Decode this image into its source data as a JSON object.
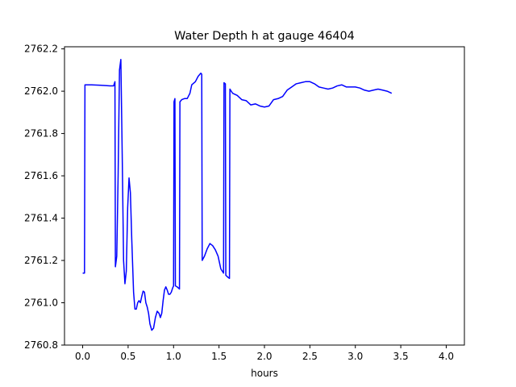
{
  "chart_data": {
    "type": "line",
    "title": "Water Depth h at gauge 46404",
    "xlabel": "hours",
    "ylabel": "",
    "xlim": [
      -0.2,
      4.2
    ],
    "ylim": [
      2760.8,
      2762.21
    ],
    "xticks": [
      {
        "value": 0.0,
        "label": "0.0"
      },
      {
        "value": 0.5,
        "label": "0.5"
      },
      {
        "value": 1.0,
        "label": "1.0"
      },
      {
        "value": 1.5,
        "label": "1.5"
      },
      {
        "value": 2.0,
        "label": "2.0"
      },
      {
        "value": 2.5,
        "label": "2.5"
      },
      {
        "value": 3.0,
        "label": "3.0"
      },
      {
        "value": 3.5,
        "label": "3.5"
      },
      {
        "value": 4.0,
        "label": "4.0"
      }
    ],
    "yticks": [
      {
        "value": 2760.8,
        "label": "2760.8"
      },
      {
        "value": 2761.0,
        "label": "2761.0"
      },
      {
        "value": 2761.2,
        "label": "2761.2"
      },
      {
        "value": 2761.4,
        "label": "2761.4"
      },
      {
        "value": 2761.6,
        "label": "2761.6"
      },
      {
        "value": 2761.8,
        "label": "2761.8"
      },
      {
        "value": 2762.0,
        "label": "2762.0"
      },
      {
        "value": 2762.2,
        "label": "2762.2"
      }
    ],
    "grid": false,
    "series": [
      {
        "color": "#0000ff",
        "points": [
          [
            0.0,
            2761.14
          ],
          [
            0.02,
            2761.14
          ],
          [
            0.025,
            2762.03
          ],
          [
            0.1,
            2762.03
          ],
          [
            0.2,
            2762.028
          ],
          [
            0.3,
            2762.025
          ],
          [
            0.34,
            2762.025
          ],
          [
            0.355,
            2762.045
          ],
          [
            0.36,
            2761.17
          ],
          [
            0.375,
            2761.22
          ],
          [
            0.39,
            2761.6
          ],
          [
            0.405,
            2762.1
          ],
          [
            0.42,
            2762.15
          ],
          [
            0.435,
            2761.7
          ],
          [
            0.45,
            2761.2
          ],
          [
            0.465,
            2761.09
          ],
          [
            0.48,
            2761.15
          ],
          [
            0.495,
            2761.45
          ],
          [
            0.51,
            2761.59
          ],
          [
            0.525,
            2761.52
          ],
          [
            0.54,
            2761.3
          ],
          [
            0.56,
            2761.05
          ],
          [
            0.575,
            2760.97
          ],
          [
            0.59,
            2760.97
          ],
          [
            0.605,
            2761.0
          ],
          [
            0.62,
            2761.01
          ],
          [
            0.635,
            2761.0
          ],
          [
            0.65,
            2761.03
          ],
          [
            0.665,
            2761.055
          ],
          [
            0.68,
            2761.05
          ],
          [
            0.695,
            2761.0
          ],
          [
            0.71,
            2760.98
          ],
          [
            0.725,
            2760.95
          ],
          [
            0.74,
            2760.9
          ],
          [
            0.76,
            2760.87
          ],
          [
            0.78,
            2760.88
          ],
          [
            0.8,
            2760.93
          ],
          [
            0.82,
            2760.96
          ],
          [
            0.84,
            2760.95
          ],
          [
            0.855,
            2760.93
          ],
          [
            0.87,
            2760.95
          ],
          [
            0.885,
            2761.01
          ],
          [
            0.9,
            2761.06
          ],
          [
            0.915,
            2761.075
          ],
          [
            0.93,
            2761.06
          ],
          [
            0.945,
            2761.04
          ],
          [
            0.96,
            2761.04
          ],
          [
            0.975,
            2761.05
          ],
          [
            0.99,
            2761.07
          ],
          [
            1.0,
            2761.08
          ],
          [
            1.005,
            2761.95
          ],
          [
            1.015,
            2761.965
          ],
          [
            1.02,
            2761.08
          ],
          [
            1.04,
            2761.075
          ],
          [
            1.065,
            2761.065
          ],
          [
            1.07,
            2761.95
          ],
          [
            1.09,
            2761.96
          ],
          [
            1.12,
            2761.965
          ],
          [
            1.15,
            2761.965
          ],
          [
            1.18,
            2761.99
          ],
          [
            1.2,
            2762.03
          ],
          [
            1.24,
            2762.045
          ],
          [
            1.27,
            2762.07
          ],
          [
            1.3,
            2762.085
          ],
          [
            1.31,
            2762.08
          ],
          [
            1.315,
            2761.2
          ],
          [
            1.34,
            2761.22
          ],
          [
            1.37,
            2761.255
          ],
          [
            1.4,
            2761.28
          ],
          [
            1.43,
            2761.27
          ],
          [
            1.46,
            2761.25
          ],
          [
            1.49,
            2761.22
          ],
          [
            1.52,
            2761.16
          ],
          [
            1.55,
            2761.14
          ],
          [
            1.555,
            2762.04
          ],
          [
            1.57,
            2762.035
          ],
          [
            1.575,
            2761.13
          ],
          [
            1.6,
            2761.12
          ],
          [
            1.615,
            2761.115
          ],
          [
            1.62,
            2762.01
          ],
          [
            1.65,
            2761.99
          ],
          [
            1.7,
            2761.98
          ],
          [
            1.75,
            2761.96
          ],
          [
            1.8,
            2761.955
          ],
          [
            1.85,
            2761.935
          ],
          [
            1.9,
            2761.94
          ],
          [
            1.95,
            2761.93
          ],
          [
            2.0,
            2761.925
          ],
          [
            2.05,
            2761.93
          ],
          [
            2.1,
            2761.96
          ],
          [
            2.15,
            2761.965
          ],
          [
            2.2,
            2761.975
          ],
          [
            2.25,
            2762.005
          ],
          [
            2.3,
            2762.02
          ],
          [
            2.35,
            2762.035
          ],
          [
            2.4,
            2762.04
          ],
          [
            2.45,
            2762.045
          ],
          [
            2.5,
            2762.045
          ],
          [
            2.55,
            2762.035
          ],
          [
            2.6,
            2762.02
          ],
          [
            2.65,
            2762.015
          ],
          [
            2.7,
            2762.01
          ],
          [
            2.75,
            2762.015
          ],
          [
            2.8,
            2762.025
          ],
          [
            2.85,
            2762.03
          ],
          [
            2.9,
            2762.02
          ],
          [
            2.95,
            2762.02
          ],
          [
            3.0,
            2762.02
          ],
          [
            3.05,
            2762.015
          ],
          [
            3.1,
            2762.005
          ],
          [
            3.15,
            2762.0
          ],
          [
            3.2,
            2762.005
          ],
          [
            3.25,
            2762.01
          ],
          [
            3.3,
            2762.005
          ],
          [
            3.35,
            2762.0
          ],
          [
            3.4,
            2761.99
          ]
        ]
      }
    ]
  }
}
